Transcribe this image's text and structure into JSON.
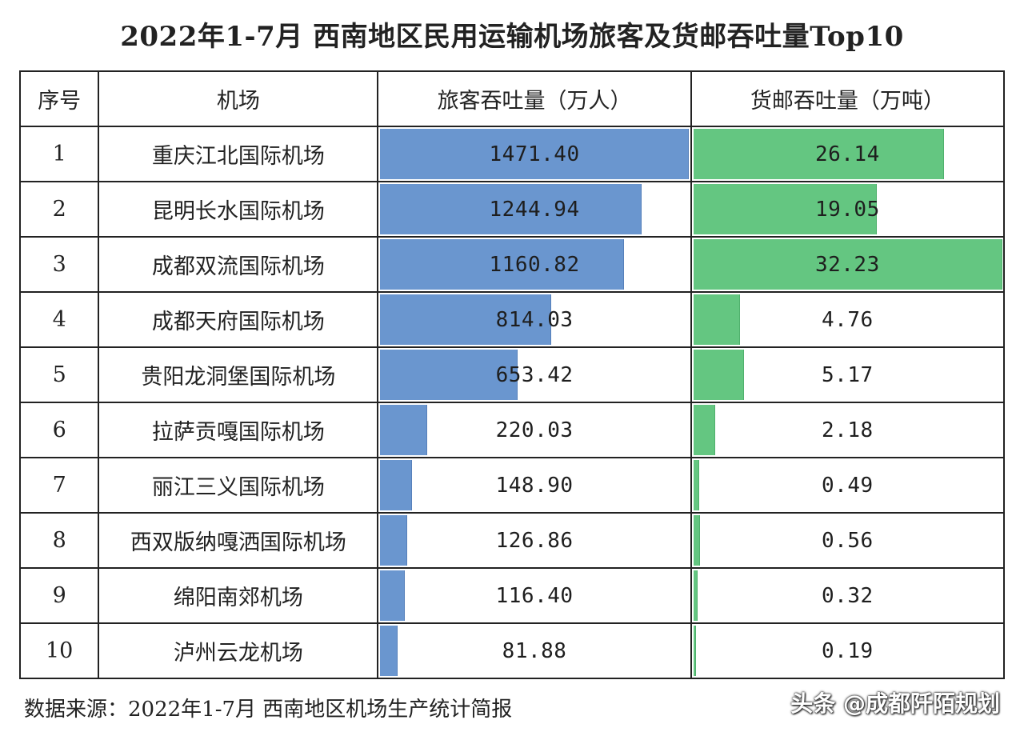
{
  "title": "2022年1-7月 西南地区民用运输机场旅客及货邮吞吐量Top10",
  "headers": {
    "no": "序号",
    "airport": "机场",
    "passenger": "旅客吞吐量（万人）",
    "cargo": "货邮吞吐量（万吨）"
  },
  "colors": {
    "passenger_bar": "#6a96cf",
    "cargo_bar": "#64c681",
    "grid": "#222222"
  },
  "chart_data": {
    "type": "table",
    "title": "2022年1-7月 西南地区民用运输机场旅客及货邮吞吐量Top10",
    "columns": [
      "序号",
      "机场",
      "旅客吞吐量（万人）",
      "货邮吞吐量（万吨）"
    ],
    "rows": [
      {
        "no": "1",
        "airport": "重庆江北国际机场",
        "passenger": 1471.4,
        "passenger_label": "1471.40",
        "cargo": 26.14,
        "cargo_label": "26.14"
      },
      {
        "no": "2",
        "airport": "昆明长水国际机场",
        "passenger": 1244.94,
        "passenger_label": "1244.94",
        "cargo": 19.05,
        "cargo_label": "19.05"
      },
      {
        "no": "3",
        "airport": "成都双流国际机场",
        "passenger": 1160.82,
        "passenger_label": "1160.82",
        "cargo": 32.23,
        "cargo_label": "32.23"
      },
      {
        "no": "4",
        "airport": "成都天府国际机场",
        "passenger": 814.03,
        "passenger_label": "814.03",
        "cargo": 4.76,
        "cargo_label": "4.76"
      },
      {
        "no": "5",
        "airport": "贵阳龙洞堡国际机场",
        "passenger": 653.42,
        "passenger_label": "653.42",
        "cargo": 5.17,
        "cargo_label": "5.17"
      },
      {
        "no": "6",
        "airport": "拉萨贡嘎国际机场",
        "passenger": 220.03,
        "passenger_label": "220.03",
        "cargo": 2.18,
        "cargo_label": "2.18"
      },
      {
        "no": "7",
        "airport": "丽江三义国际机场",
        "passenger": 148.9,
        "passenger_label": "148.90",
        "cargo": 0.49,
        "cargo_label": "0.49"
      },
      {
        "no": "8",
        "airport": "西双版纳嘎洒国际机场",
        "passenger": 126.86,
        "passenger_label": "126.86",
        "cargo": 0.56,
        "cargo_label": "0.56"
      },
      {
        "no": "9",
        "airport": "绵阳南郊机场",
        "passenger": 116.4,
        "passenger_label": "116.40",
        "cargo": 0.32,
        "cargo_label": "0.32"
      },
      {
        "no": "10",
        "airport": "泸州云龙机场",
        "passenger": 81.88,
        "passenger_label": "81.88",
        "cargo": 0.19,
        "cargo_label": "0.19"
      }
    ]
  },
  "source": "数据来源：2022年1-7月 西南地区机场生产统计简报",
  "watermark": "头条 @成都阡陌规划"
}
